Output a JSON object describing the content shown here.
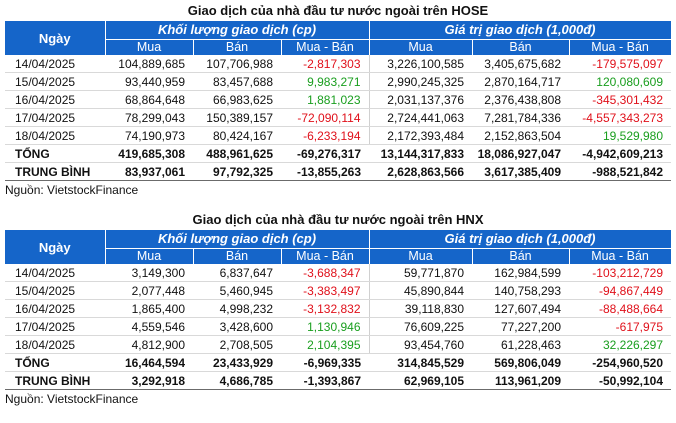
{
  "tables": [
    {
      "title": "Giao dịch của nhà đầu tư nước ngoài trên HOSE",
      "ngay_label": "Ngày",
      "group1": "Khối lượng giao dịch (cp)",
      "group2": "Giá trị giao dịch (1,000đ)",
      "sub": [
        "Mua",
        "Bán",
        "Mua - Bán",
        "Mua",
        "Bán",
        "Mua - Bán"
      ],
      "rows": [
        {
          "date": "14/04/2025",
          "v": [
            "104,889,685",
            "107,706,988",
            "-2,817,303",
            "3,226,100,585",
            "3,405,675,682",
            "-179,575,097"
          ],
          "c1": "neg",
          "c2": "neg"
        },
        {
          "date": "15/04/2025",
          "v": [
            "93,440,959",
            "83,457,688",
            "9,983,271",
            "2,990,245,325",
            "2,870,164,717",
            "120,080,609"
          ],
          "c1": "pos",
          "c2": "pos"
        },
        {
          "date": "16/04/2025",
          "v": [
            "68,864,648",
            "66,983,625",
            "1,881,023",
            "2,031,137,376",
            "2,376,438,808",
            "-345,301,432"
          ],
          "c1": "pos",
          "c2": "neg"
        },
        {
          "date": "17/04/2025",
          "v": [
            "78,299,043",
            "150,389,157",
            "-72,090,114",
            "2,724,441,063",
            "7,281,784,336",
            "-4,557,343,273"
          ],
          "c1": "neg",
          "c2": "neg"
        },
        {
          "date": "18/04/2025",
          "v": [
            "74,190,973",
            "80,424,167",
            "-6,233,194",
            "2,172,393,484",
            "2,152,863,504",
            "19,529,980"
          ],
          "c1": "neg",
          "c2": "pos"
        }
      ],
      "total": {
        "label": "TỔNG",
        "v": [
          "419,685,308",
          "488,961,625",
          "-69,276,317",
          "13,144,317,833",
          "18,086,927,047",
          "-4,942,609,213"
        ]
      },
      "avg": {
        "label": "TRUNG BÌNH",
        "v": [
          "83,937,061",
          "97,792,325",
          "-13,855,263",
          "2,628,863,566",
          "3,617,385,409",
          "-988,521,842"
        ]
      },
      "source": "Nguồn: VietstockFinance"
    },
    {
      "title": "Giao dịch của nhà đầu tư nước ngoài trên HNX",
      "ngay_label": "Ngày",
      "group1": "Khối lượng giao dịch (cp)",
      "group2": "Giá trị giao dịch (1,000đ)",
      "sub": [
        "Mua",
        "Bán",
        "Mua - Bán",
        "Mua",
        "Bán",
        "Mua - Bán"
      ],
      "rows": [
        {
          "date": "14/04/2025",
          "v": [
            "3,149,300",
            "6,837,647",
            "-3,688,347",
            "59,771,870",
            "162,984,599",
            "-103,212,729"
          ],
          "c1": "neg",
          "c2": "neg"
        },
        {
          "date": "15/04/2025",
          "v": [
            "2,077,448",
            "5,460,945",
            "-3,383,497",
            "45,890,844",
            "140,758,293",
            "-94,867,449"
          ],
          "c1": "neg",
          "c2": "neg"
        },
        {
          "date": "16/04/2025",
          "v": [
            "1,865,400",
            "4,998,232",
            "-3,132,832",
            "39,118,830",
            "127,607,494",
            "-88,488,664"
          ],
          "c1": "neg",
          "c2": "neg"
        },
        {
          "date": "17/04/2025",
          "v": [
            "4,559,546",
            "3,428,600",
            "1,130,946",
            "76,609,225",
            "77,227,200",
            "-617,975"
          ],
          "c1": "pos",
          "c2": "neg"
        },
        {
          "date": "18/04/2025",
          "v": [
            "4,812,900",
            "2,708,505",
            "2,104,395",
            "93,454,760",
            "61,228,463",
            "32,226,297"
          ],
          "c1": "pos",
          "c2": "pos"
        }
      ],
      "total": {
        "label": "TỔNG",
        "v": [
          "16,464,594",
          "23,433,929",
          "-6,969,335",
          "314,845,529",
          "569,806,049",
          "-254,960,520"
        ]
      },
      "avg": {
        "label": "TRUNG BÌNH",
        "v": [
          "3,292,918",
          "4,686,785",
          "-1,393,867",
          "62,969,105",
          "113,961,209",
          "-50,992,104"
        ]
      },
      "source": "Nguồn: VietstockFinance"
    }
  ],
  "colors": {
    "header_bg": "#1565c9",
    "negative": "#e0101a",
    "positive": "#199e1e"
  }
}
